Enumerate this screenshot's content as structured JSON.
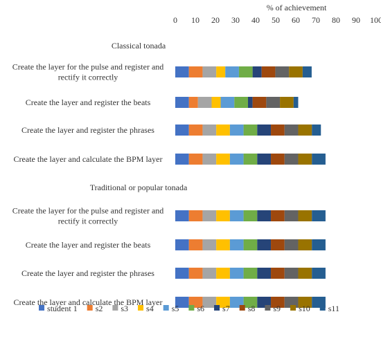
{
  "chart_data": {
    "type": "bar",
    "orientation": "horizontal",
    "stacked": true,
    "xlabel": "% of achievement",
    "xlim": [
      0,
      100
    ],
    "xticks": [
      "0",
      "10",
      "20",
      "30",
      "40",
      "50",
      "60",
      "70",
      "80",
      "90",
      "100"
    ],
    "grid": false,
    "legend_position": "bottom",
    "categories": [
      "Classical tonada",
      "Create the layer for the pulse and register and rectify it correctly",
      "Create the layer and register the beats",
      "Create the layer and register the phrases",
      "Create the layer and calculate the BPM layer",
      "Traditional or popular tonada",
      "Create the layer for the pulse and register and rectify it correctly",
      "Create the layer and register the beats",
      "Create the layer and register the phrases",
      "Create the layer and calculate the BPM layer"
    ],
    "series": [
      {
        "name": "student 1",
        "color": "#4472C4",
        "values": [
          0,
          6.8,
          6.8,
          6.8,
          6.8,
          0,
          6.8,
          6.8,
          6.8,
          6.8
        ]
      },
      {
        "name": "s2",
        "color": "#ED7D31",
        "values": [
          0,
          6.8,
          4.5,
          6.8,
          6.8,
          0,
          6.8,
          6.8,
          6.8,
          6.8
        ]
      },
      {
        "name": "s3",
        "color": "#A5A5A5",
        "values": [
          0,
          6.8,
          6.8,
          6.8,
          6.8,
          0,
          6.8,
          6.8,
          6.8,
          6.8
        ]
      },
      {
        "name": "s4",
        "color": "#FFC000",
        "values": [
          0,
          4.5,
          4.5,
          6.8,
          6.8,
          0,
          6.8,
          6.8,
          6.8,
          6.8
        ]
      },
      {
        "name": "s5",
        "color": "#5B9BD5",
        "values": [
          0,
          6.8,
          6.8,
          6.8,
          6.8,
          0,
          6.8,
          6.8,
          6.8,
          6.8
        ]
      },
      {
        "name": "s6",
        "color": "#70AD47",
        "values": [
          0,
          6.8,
          6.8,
          6.8,
          6.8,
          0,
          6.8,
          6.8,
          6.8,
          6.8
        ]
      },
      {
        "name": "s7",
        "color": "#264478",
        "values": [
          0,
          4.5,
          2.3,
          6.8,
          6.8,
          0,
          6.8,
          6.8,
          6.8,
          6.8
        ]
      },
      {
        "name": "s8",
        "color": "#9E480E",
        "values": [
          0,
          6.8,
          6.8,
          6.8,
          6.8,
          0,
          6.8,
          6.8,
          6.8,
          6.8
        ]
      },
      {
        "name": "s9",
        "color": "#636363",
        "values": [
          0,
          6.8,
          6.8,
          6.8,
          6.8,
          0,
          6.8,
          6.8,
          6.8,
          6.8
        ]
      },
      {
        "name": "s10",
        "color": "#997300",
        "values": [
          0,
          6.8,
          6.8,
          6.8,
          6.8,
          0,
          6.8,
          6.8,
          6.8,
          6.8
        ]
      },
      {
        "name": "s11",
        "color": "#255E91",
        "values": [
          0,
          4.5,
          2.3,
          4.5,
          6.8,
          0,
          6.8,
          6.8,
          6.8,
          6.8
        ]
      }
    ]
  }
}
